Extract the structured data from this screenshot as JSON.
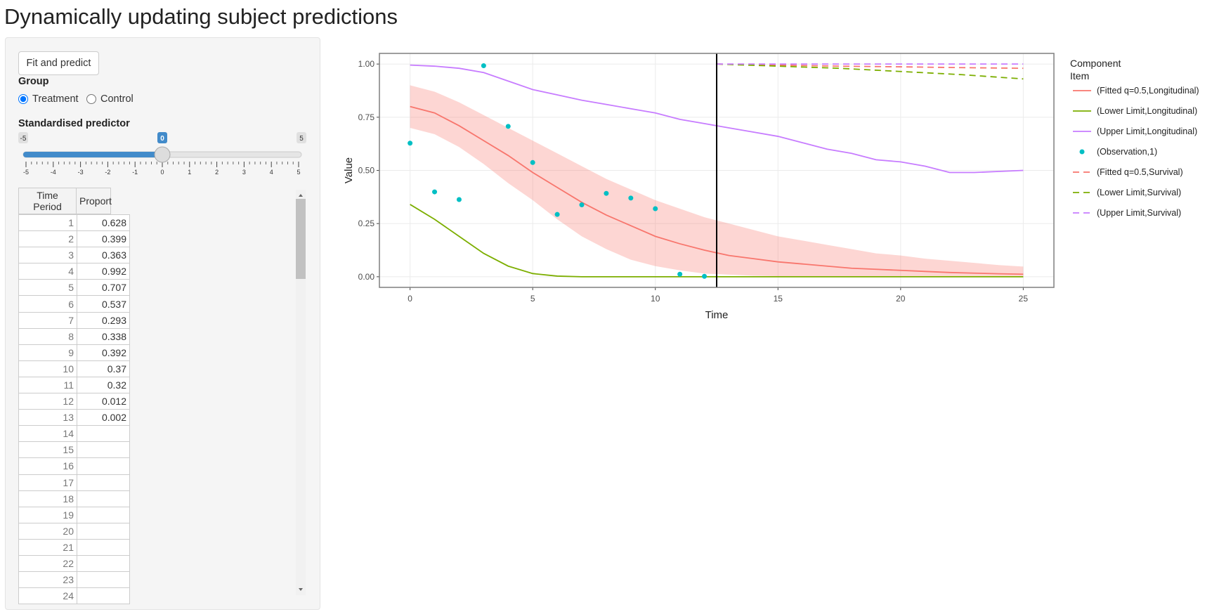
{
  "header": {
    "title": "Dynamically updating subject predictions"
  },
  "sidebar": {
    "button": "Fit and predict",
    "group": {
      "label": "Group",
      "options": [
        "Treatment",
        "Control"
      ],
      "selected": 0
    },
    "slider": {
      "label": "Standardised predictor",
      "min": -5,
      "max": 5,
      "value": 0,
      "ticks": [
        -5,
        -4,
        -3,
        -2,
        -1,
        0,
        1,
        2,
        3,
        4,
        5
      ]
    },
    "table": {
      "columns": [
        "Time Period",
        "Proport"
      ],
      "rows": [
        [
          1,
          0.628
        ],
        [
          2,
          0.399
        ],
        [
          3,
          0.363
        ],
        [
          4,
          0.992
        ],
        [
          5,
          0.707
        ],
        [
          6,
          0.537
        ],
        [
          7,
          0.293
        ],
        [
          8,
          0.338
        ],
        [
          9,
          0.392
        ],
        [
          10,
          0.37
        ],
        [
          11,
          0.32
        ],
        [
          12,
          0.012
        ],
        [
          13,
          0.002
        ],
        [
          14,
          null
        ],
        [
          15,
          null
        ],
        [
          16,
          null
        ],
        [
          17,
          null
        ],
        [
          18,
          null
        ],
        [
          19,
          null
        ],
        [
          20,
          null
        ],
        [
          21,
          null
        ],
        [
          22,
          null
        ],
        [
          23,
          null
        ],
        [
          24,
          null
        ]
      ]
    }
  },
  "chart_data": {
    "type": "line",
    "x_label": "Time",
    "y_label": "Value",
    "xlim": [
      -1.25,
      26.25
    ],
    "ylim": [
      -0.05,
      1.05
    ],
    "xticks": [
      0,
      5,
      10,
      15,
      20,
      25
    ],
    "yticks": [
      {
        "value": 0,
        "label": "0.00"
      },
      {
        "value": 0.25,
        "label": "0.25"
      },
      {
        "value": 0.5,
        "label": "0.50"
      },
      {
        "value": 0.75,
        "label": "0.75"
      },
      {
        "value": 1,
        "label": "1.00"
      }
    ],
    "grid": true,
    "vline": 12.5,
    "legend_title": [
      "Component",
      "Item"
    ],
    "band": {
      "color": "#F8766D",
      "x": [
        0,
        1,
        2,
        3,
        4,
        5,
        6,
        7,
        8,
        9,
        10,
        11,
        12,
        13,
        14,
        15,
        16,
        17,
        18,
        19,
        20,
        21,
        22,
        23,
        24,
        25
      ],
      "upper": [
        0.9,
        0.87,
        0.82,
        0.76,
        0.7,
        0.64,
        0.58,
        0.52,
        0.46,
        0.41,
        0.36,
        0.32,
        0.28,
        0.25,
        0.22,
        0.19,
        0.17,
        0.15,
        0.13,
        0.11,
        0.1,
        0.085,
        0.075,
        0.065,
        0.055,
        0.048
      ],
      "lower": [
        0.7,
        0.67,
        0.61,
        0.53,
        0.44,
        0.36,
        0.27,
        0.19,
        0.13,
        0.08,
        0.05,
        0.03,
        0.015,
        0.01,
        0.005,
        0.003,
        0.002,
        0.001,
        0,
        0,
        0,
        0,
        0,
        0,
        0,
        0
      ]
    },
    "series": [
      {
        "name": "(Fitted q=0.5,Longitudinal)",
        "color": "#F8766D",
        "mode": "lines",
        "dash": false,
        "x": [
          0,
          1,
          2,
          3,
          4,
          5,
          6,
          7,
          8,
          9,
          10,
          11,
          12,
          13,
          14,
          15,
          16,
          17,
          18,
          19,
          20,
          21,
          22,
          23,
          24,
          25
        ],
        "values": [
          0.8,
          0.77,
          0.71,
          0.64,
          0.57,
          0.49,
          0.42,
          0.35,
          0.29,
          0.24,
          0.19,
          0.155,
          0.125,
          0.1,
          0.085,
          0.07,
          0.06,
          0.05,
          0.04,
          0.035,
          0.03,
          0.025,
          0.02,
          0.017,
          0.014,
          0.012
        ]
      },
      {
        "name": "(Lower Limit,Longitudinal)",
        "color": "#7CAE00",
        "mode": "lines",
        "dash": false,
        "x": [
          0,
          1,
          2,
          3,
          4,
          5,
          6,
          7,
          8,
          9,
          10,
          11,
          12,
          13,
          14,
          15,
          16,
          17,
          18,
          19,
          20,
          21,
          22,
          23,
          24,
          25
        ],
        "values": [
          0.34,
          0.27,
          0.19,
          0.11,
          0.05,
          0.015,
          0.003,
          0,
          0,
          0,
          0,
          0,
          0,
          0,
          0,
          0,
          0,
          0,
          0,
          0,
          0,
          0,
          0,
          0,
          0,
          0
        ]
      },
      {
        "name": "(Upper Limit,Longitudinal)",
        "color": "#C77CFF",
        "mode": "lines",
        "dash": false,
        "x": [
          0,
          1,
          2,
          3,
          4,
          5,
          6,
          7,
          8,
          9,
          10,
          11,
          12,
          13,
          14,
          15,
          16,
          17,
          18,
          19,
          20,
          21,
          22,
          23,
          24,
          25
        ],
        "values": [
          0.995,
          0.99,
          0.98,
          0.96,
          0.92,
          0.88,
          0.855,
          0.83,
          0.81,
          0.79,
          0.77,
          0.74,
          0.72,
          0.7,
          0.68,
          0.66,
          0.63,
          0.6,
          0.58,
          0.55,
          0.54,
          0.52,
          0.49,
          0.49,
          0.495,
          0.5
        ]
      },
      {
        "name": "(Observation,1)",
        "color": "#00BFC4",
        "mode": "markers",
        "x": [
          0,
          1,
          2,
          3,
          4,
          5,
          6,
          7,
          8,
          9,
          10,
          11,
          12
        ],
        "values": [
          0.628,
          0.399,
          0.363,
          0.992,
          0.707,
          0.537,
          0.293,
          0.338,
          0.392,
          0.37,
          0.32,
          0.012,
          0.002
        ]
      },
      {
        "name": "(Fitted q=0.5,Survival)",
        "color": "#F8766D",
        "mode": "lines",
        "dash": true,
        "x": [
          12.5,
          15,
          17.5,
          20,
          22.5,
          25
        ],
        "values": [
          1,
          0.995,
          0.99,
          0.987,
          0.983,
          0.98
        ]
      },
      {
        "name": "(Lower Limit,Survival)",
        "color": "#7CAE00",
        "mode": "lines",
        "dash": true,
        "x": [
          12.5,
          15,
          17.5,
          20,
          22.5,
          25
        ],
        "values": [
          1,
          0.99,
          0.98,
          0.965,
          0.95,
          0.93
        ]
      },
      {
        "name": "(Upper Limit,Survival)",
        "color": "#C77CFF",
        "mode": "lines",
        "dash": true,
        "x": [
          12.5,
          15,
          17.5,
          20,
          22.5,
          25
        ],
        "values": [
          1,
          1,
          1,
          1,
          1,
          1
        ]
      }
    ]
  }
}
